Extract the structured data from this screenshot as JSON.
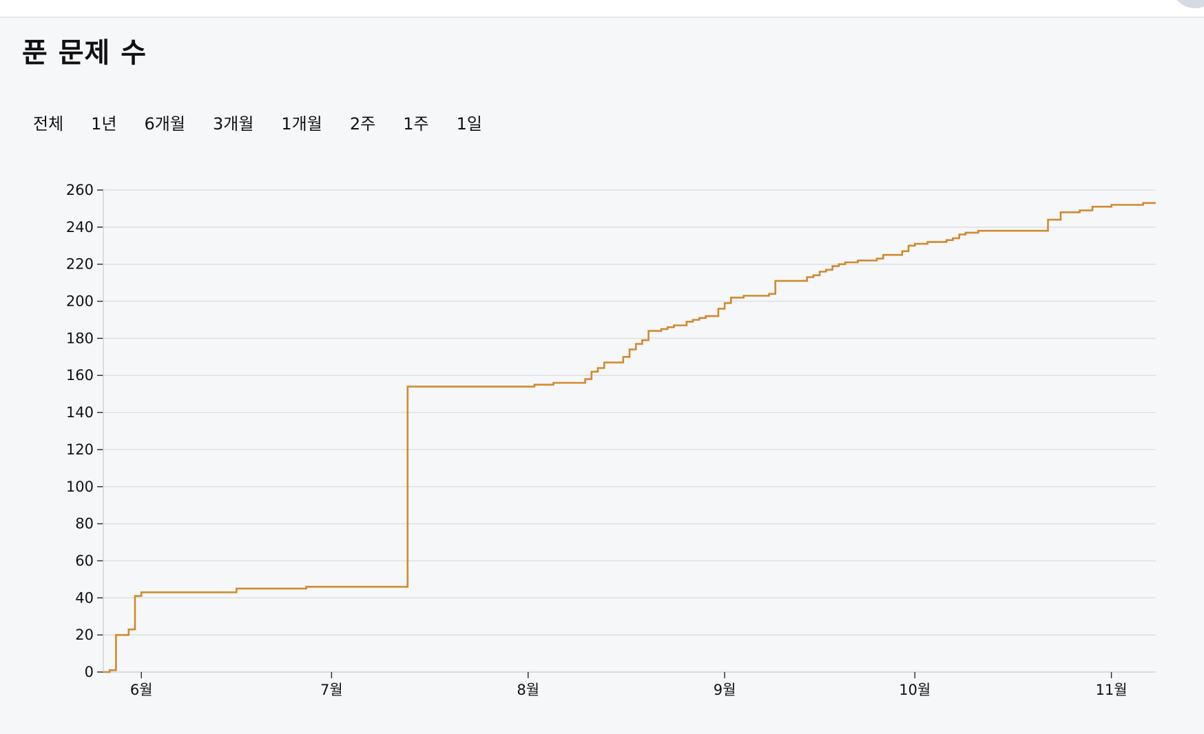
{
  "header": {
    "title": "푼 문제 수"
  },
  "ranges": [
    "전체",
    "1년",
    "6개월",
    "3개월",
    "1개월",
    "2주",
    "1주",
    "1일"
  ],
  "colors": {
    "line": "#d08a2c",
    "grid": "#dedfe3",
    "axis": "#d2d4d9",
    "panel": "#f6f7f9"
  },
  "chart_data": {
    "type": "line",
    "step": true,
    "title": "",
    "xlabel": "",
    "ylabel": "",
    "ylim": [
      0,
      260
    ],
    "yticks": [
      0,
      20,
      40,
      60,
      80,
      100,
      120,
      140,
      160,
      180,
      200,
      220,
      240,
      260
    ],
    "xrange": [
      "05-26",
      "11-08"
    ],
    "xticks": [
      {
        "date": "06-01",
        "label": "6월"
      },
      {
        "date": "07-01",
        "label": "7월"
      },
      {
        "date": "08-01",
        "label": "8월"
      },
      {
        "date": "09-01",
        "label": "9월"
      },
      {
        "date": "10-01",
        "label": "10월"
      },
      {
        "date": "11-01",
        "label": "11월"
      }
    ],
    "grid": true,
    "series": [
      {
        "points": [
          [
            "05-26",
            0
          ],
          [
            "05-27",
            1
          ],
          [
            "05-28",
            2
          ],
          [
            "05-28",
            20
          ],
          [
            "05-30",
            23
          ],
          [
            "05-31",
            41
          ],
          [
            "06-01",
            43
          ],
          [
            "06-16",
            45
          ],
          [
            "06-27",
            46
          ],
          [
            "07-13",
            154
          ],
          [
            "08-02",
            155
          ],
          [
            "08-05",
            156
          ],
          [
            "08-10",
            158
          ],
          [
            "08-11",
            162
          ],
          [
            "08-12",
            164
          ],
          [
            "08-13",
            167
          ],
          [
            "08-16",
            170
          ],
          [
            "08-17",
            174
          ],
          [
            "08-18",
            177
          ],
          [
            "08-19",
            179
          ],
          [
            "08-20",
            184
          ],
          [
            "08-22",
            185
          ],
          [
            "08-23",
            186
          ],
          [
            "08-24",
            187
          ],
          [
            "08-26",
            189
          ],
          [
            "08-27",
            190
          ],
          [
            "08-28",
            191
          ],
          [
            "08-29",
            192
          ],
          [
            "08-31",
            196
          ],
          [
            "09-01",
            199
          ],
          [
            "09-02",
            202
          ],
          [
            "09-04",
            203
          ],
          [
            "09-08",
            204
          ],
          [
            "09-09",
            208
          ],
          [
            "09-09",
            211
          ],
          [
            "09-14",
            213
          ],
          [
            "09-15",
            214
          ],
          [
            "09-16",
            216
          ],
          [
            "09-17",
            217
          ],
          [
            "09-18",
            219
          ],
          [
            "09-19",
            220
          ],
          [
            "09-20",
            221
          ],
          [
            "09-22",
            222
          ],
          [
            "09-25",
            223
          ],
          [
            "09-26",
            225
          ],
          [
            "09-29",
            227
          ],
          [
            "09-30",
            230
          ],
          [
            "10-01",
            231
          ],
          [
            "10-03",
            232
          ],
          [
            "10-06",
            233
          ],
          [
            "10-07",
            234
          ],
          [
            "10-08",
            236
          ],
          [
            "10-09",
            237
          ],
          [
            "10-11",
            238
          ],
          [
            "10-22",
            244
          ],
          [
            "10-24",
            248
          ],
          [
            "10-27",
            249
          ],
          [
            "10-29",
            251
          ],
          [
            "11-01",
            252
          ],
          [
            "11-06",
            253
          ]
        ]
      }
    ]
  }
}
